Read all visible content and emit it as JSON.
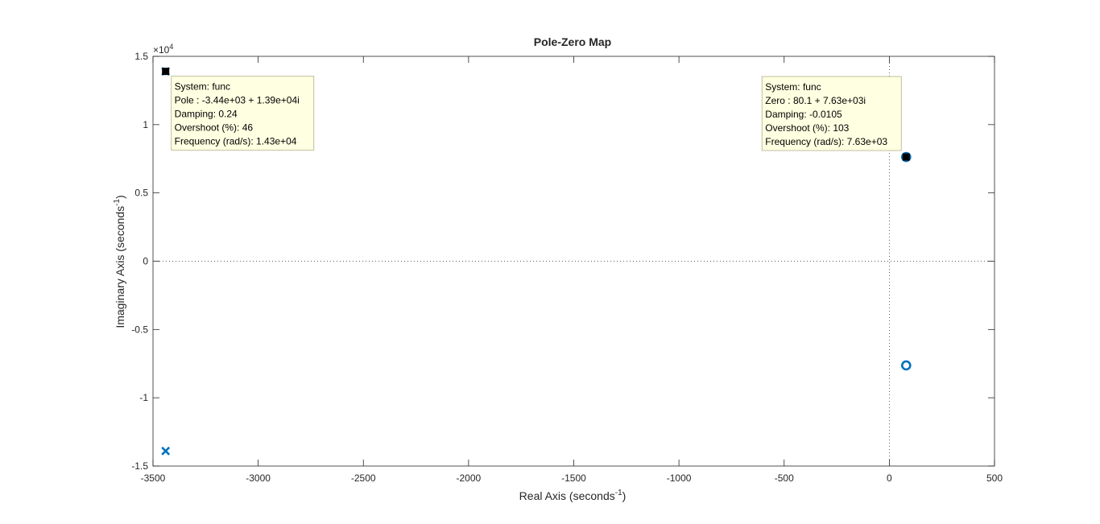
{
  "chart_data": {
    "type": "scatter",
    "title": "Pole-Zero Map",
    "xlabel": "Real Axis (seconds",
    "xlabel_sup": "-1",
    "xlabel_end": ")",
    "ylabel": "Imaginary Axis (seconds",
    "ylabel_sup": "-1",
    "ylabel_end": ")",
    "xlim": [
      -3500,
      500
    ],
    "ylim": [
      -15000,
      15000
    ],
    "x_ticks": [
      -3500,
      -3000,
      -2500,
      -2000,
      -1500,
      -1000,
      -500,
      0,
      500
    ],
    "x_tick_labels": [
      "-3500",
      "-3000",
      "-2500",
      "-2000",
      "-1500",
      "-1000",
      "-500",
      "0",
      "500"
    ],
    "y_ticks": [
      -15000,
      -10000,
      -5000,
      0,
      5000,
      10000,
      15000
    ],
    "y_tick_labels": [
      "-1.5",
      "-1",
      "-0.5",
      "0",
      "0.5",
      "1",
      "1.5"
    ],
    "y_exponent_prefix": "×10",
    "y_exponent_power": "4",
    "grid": false,
    "zero_lines": true,
    "marker_color": "#0072BD",
    "series": [
      {
        "kind": "pole",
        "marker": "x",
        "points": [
          {
            "x": -3440,
            "y": 13900
          },
          {
            "x": -3440,
            "y": -13900
          }
        ]
      },
      {
        "kind": "zero",
        "marker": "o",
        "points": [
          {
            "x": 80.1,
            "y": 7630
          },
          {
            "x": 80.1,
            "y": -7630
          }
        ]
      }
    ],
    "datatips": [
      {
        "x": -3440,
        "y": 13900,
        "lines": [
          "System: func",
          "Pole : -3.44e+03 + 1.39e+04i",
          "Damping: 0.24",
          "Overshoot (%): 46",
          "Frequency (rad/s): 1.43e+04"
        ]
      },
      {
        "x": 80.1,
        "y": 7630,
        "lines": [
          "System: func",
          "Zero : 80.1 + 7.63e+03i",
          "Damping: -0.0105",
          "Overshoot (%): 103",
          "Frequency (rad/s): 7.63e+03"
        ]
      }
    ]
  }
}
